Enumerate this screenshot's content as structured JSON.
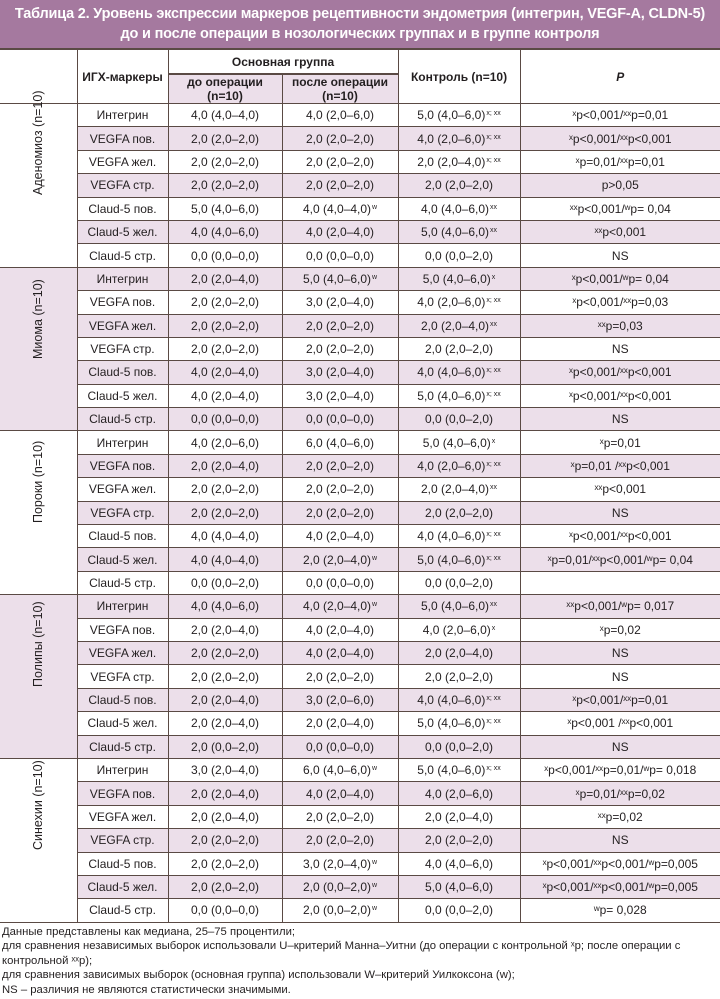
{
  "title": {
    "line1": "Таблица 2. Уровень экспрессии маркеров рецептивности эндометрия (интегрин, VEGF-A, CLDN-5)",
    "line2": "до и после операции в нозологических группах и в группе контроля"
  },
  "header": {
    "markers": "ИГХ-маркеры",
    "main_group": "Основная группа",
    "before": "до операции (n=10)",
    "after": "после операции (n=10)",
    "control": "Контроль (n=10)",
    "p": "P"
  },
  "colors": {
    "title_bg": "#a5799f",
    "row_shade": "#ecdfea",
    "border": "#5a4a44"
  },
  "groups": [
    {
      "label": "Аденомиоз (n=10)",
      "rows": [
        {
          "marker": "Интегрин",
          "before": "4,0 (4,0–4,0)",
          "after": "4,0 (2,0–6,0)",
          "after_sup": "",
          "control": "5,0 (4,0–6,0)",
          "control_sup": "x; xx",
          "p": "ˣp<0,001/ˣˣp=0,01"
        },
        {
          "marker": "VEGFA пов.",
          "before": "2,0 (2,0–2,0)",
          "after": "2,0 (2,0–2,0)",
          "after_sup": "",
          "control": "4,0 (2,0–6,0)",
          "control_sup": "x; xx",
          "p": "ˣp<0,001/ˣˣp<0,001"
        },
        {
          "marker": "VEGFA жел.",
          "before": "2,0 (2,0–2,0)",
          "after": "2,0 (2,0–2,0)",
          "after_sup": "",
          "control": "2,0 (2,0–4,0)",
          "control_sup": "x; xx",
          "p": "ˣp=0,01/ˣˣp=0,01"
        },
        {
          "marker": "VEGFA стр.",
          "before": "2,0 (2,0–2,0)",
          "after": "2,0 (2,0–2,0)",
          "after_sup": "",
          "control": "2,0 (2,0–2,0)",
          "control_sup": "",
          "p": "p>0,05"
        },
        {
          "marker": "Claud-5 пов.",
          "before": "5,0 (4,0–6,0)",
          "after": "4,0 (4,0–4,0)",
          "after_sup": "w",
          "control": "4,0 (4,0–6,0)",
          "control_sup": "xx",
          "p": "ˣˣp<0,001/ʷp= 0,04"
        },
        {
          "marker": "Claud-5 жел.",
          "before": "4,0 (4,0–6,0)",
          "after": "4,0 (2,0–4,0)",
          "after_sup": "",
          "control": "5,0 (4,0–6,0)",
          "control_sup": "xx",
          "p": "ˣˣp<0,001"
        },
        {
          "marker": "Claud-5 стр.",
          "before": "0,0 (0,0–0,0)",
          "after": "0,0 (0,0–0,0)",
          "after_sup": "",
          "control": "0,0 (0,0–2,0)",
          "control_sup": "",
          "p": "NS"
        }
      ]
    },
    {
      "label": "Миома (n=10)",
      "rows": [
        {
          "marker": "Интегрин",
          "before": "2,0 (2,0–4,0)",
          "after": "5,0 (4,0–6,0)",
          "after_sup": "w",
          "control": "5,0 (4,0–6,0)",
          "control_sup": "x",
          "p": "ˣp<0,001/ʷp= 0,04"
        },
        {
          "marker": "VEGFA пов.",
          "before": "2,0 (2,0–2,0)",
          "after": "3,0 (2,0–4,0)",
          "after_sup": "",
          "control": "4,0 (2,0–6,0)",
          "control_sup": "x; xx",
          "p": "ˣp<0,001/ˣˣp=0,03"
        },
        {
          "marker": "VEGFA жел.",
          "before": "2,0 (2,0–2,0)",
          "after": "2,0 (2,0–2,0)",
          "after_sup": "",
          "control": "2,0 (2,0–4,0)",
          "control_sup": "xx",
          "p": "ˣˣp=0,03"
        },
        {
          "marker": "VEGFA стр.",
          "before": "2,0 (2,0–2,0)",
          "after": "2,0 (2,0–2,0)",
          "after_sup": "",
          "control": "2,0 (2,0–2,0)",
          "control_sup": "",
          "p": "NS"
        },
        {
          "marker": "Claud-5 пов.",
          "before": "4,0 (2,0–4,0)",
          "after": "3,0 (2,0–4,0)",
          "after_sup": "",
          "control": "4,0 (4,0–6,0)",
          "control_sup": "x; xx",
          "p": "ˣp<0,001/ˣˣp<0,001"
        },
        {
          "marker": "Claud-5 жел.",
          "before": "4,0 (2,0–4,0)",
          "after": "3,0 (2,0–4,0)",
          "after_sup": "",
          "control": "5,0 (4,0–6,0)",
          "control_sup": "x; xx",
          "p": "ˣp<0,001/ˣˣp<0,001"
        },
        {
          "marker": "Claud-5 стр.",
          "before": "0,0 (0,0–0,0)",
          "after": "0,0 (0,0–0,0)",
          "after_sup": "",
          "control": "0,0 (0,0–2,0)",
          "control_sup": "",
          "p": "NS"
        }
      ]
    },
    {
      "label": "Пороки (n=10)",
      "rows": [
        {
          "marker": "Интегрин",
          "before": "4,0 (2,0–6,0)",
          "after": "6,0 (4,0–6,0)",
          "after_sup": "",
          "control": "5,0 (4,0–6,0)",
          "control_sup": "x",
          "p": "ˣp=0,01"
        },
        {
          "marker": "VEGFA пов.",
          "before": "2,0 (2,0–4,0)",
          "after": "2,0 (2,0–2,0)",
          "after_sup": "",
          "control": "4,0 (2,0–6,0)",
          "control_sup": "x; xx",
          "p": "ˣp=0,01 /ˣˣp<0,001"
        },
        {
          "marker": "VEGFA жел.",
          "before": "2,0 (2,0–2,0)",
          "after": "2,0 (2,0–2,0)",
          "after_sup": "",
          "control": "2,0 (2,0–4,0)",
          "control_sup": "xx",
          "p": "ˣˣp<0,001"
        },
        {
          "marker": "VEGFA стр.",
          "before": "2,0 (2,0–2,0)",
          "after": "2,0 (2,0–2,0)",
          "after_sup": "",
          "control": "2,0 (2,0–2,0)",
          "control_sup": "",
          "p": "NS"
        },
        {
          "marker": "Claud-5 пов.",
          "before": "4,0 (4,0–4,0)",
          "after": "4,0 (2,0–4,0)",
          "after_sup": "",
          "control": "4,0 (4,0–6,0)",
          "control_sup": "x; xx",
          "p": "ˣp<0,001/ˣˣp<0,001"
        },
        {
          "marker": "Claud-5 жел.",
          "before": "4,0 (4,0–4,0)",
          "after": "2,0 (2,0–4,0)",
          "after_sup": "w",
          "control": "5,0 (4,0–6,0)",
          "control_sup": "x; xx",
          "p": "ˣp=0,01/ˣˣp<0,001/ʷp= 0,04"
        },
        {
          "marker": "Claud-5 стр.",
          "before": "0,0 (0,0–2,0)",
          "after": "0,0 (0,0–0,0)",
          "after_sup": "",
          "control": "0,0 (0,0–2,0)",
          "control_sup": "",
          "p": ""
        }
      ]
    },
    {
      "label": "Полипы (n=10)",
      "rows": [
        {
          "marker": "Интегрин",
          "before": "4,0 (4,0–6,0)",
          "after": "4,0 (2,0–4,0)",
          "after_sup": "w",
          "control": "5,0 (4,0–6,0)",
          "control_sup": "xx",
          "p": "ˣˣp<0,001/ʷp= 0,017"
        },
        {
          "marker": "VEGFA пов.",
          "before": "2,0 (2,0–4,0)",
          "after": "4,0 (2,0–4,0)",
          "after_sup": "",
          "control": "4,0 (2,0–6,0)",
          "control_sup": "x",
          "p": "ˣp=0,02"
        },
        {
          "marker": "VEGFA жел.",
          "before": "2,0 (2,0–2,0)",
          "after": "4,0 (2,0–4,0)",
          "after_sup": "",
          "control": "2,0 (2,0–4,0)",
          "control_sup": "",
          "p": "NS"
        },
        {
          "marker": "VEGFA стр.",
          "before": "2,0 (2,0–2,0)",
          "after": "2,0 (2,0–2,0)",
          "after_sup": "",
          "control": "2,0 (2,0–2,0)",
          "control_sup": "",
          "p": "NS"
        },
        {
          "marker": "Claud-5 пов.",
          "before": "2,0 (2,0–4,0)",
          "after": "3,0 (2,0–6,0)",
          "after_sup": "",
          "control": "4,0 (4,0–6,0)",
          "control_sup": "x; xx",
          "p": "ˣp<0,001/ˣˣp=0,01"
        },
        {
          "marker": "Claud-5 жел.",
          "before": "2,0 (2,0–4,0)",
          "after": "2,0 (2,0–4,0)",
          "after_sup": "",
          "control": "5,0 (4,0–6,0)",
          "control_sup": "x; xx",
          "p": "ˣp<0,001 /ˣˣp<0,001"
        },
        {
          "marker": "Claud-5 стр.",
          "before": "2,0 (0,0–2,0)",
          "after": "0,0 (0,0–0,0)",
          "after_sup": "",
          "control": "0,0 (0,0–2,0)",
          "control_sup": "",
          "p": "NS"
        }
      ]
    },
    {
      "label": "Синехии (n=10)",
      "rows": [
        {
          "marker": "Интегрин",
          "before": "3,0 (2,0–4,0)",
          "after": "6,0 (4,0–6,0)",
          "after_sup": "w",
          "control": "5,0 (4,0–6,0)",
          "control_sup": "x; xx",
          "p": "ˣp<0,001/ˣˣp=0,01/ʷp= 0,018"
        },
        {
          "marker": "VEGFA пов.",
          "before": "2,0 (2,0–4,0)",
          "after": "4,0 (2,0–4,0)",
          "after_sup": "",
          "control": "4,0 (2,0–6,0)",
          "control_sup": "",
          "p": "ˣp=0,01/ˣˣp=0,02"
        },
        {
          "marker": "VEGFA жел.",
          "before": "2,0 (2,0–4,0)",
          "after": "2,0 (2,0–2,0)",
          "after_sup": "",
          "control": "2,0 (2,0–4,0)",
          "control_sup": "",
          "p": "ˣˣp=0,02"
        },
        {
          "marker": "VEGFA стр.",
          "before": "2,0 (2,0–2,0)",
          "after": "2,0 (2,0–2,0)",
          "after_sup": "",
          "control": "2,0 (2,0–2,0)",
          "control_sup": "",
          "p": "NS"
        },
        {
          "marker": "Claud-5 пов.",
          "before": "2,0 (2,0–2,0)",
          "after": "3,0 (2,0–4,0)",
          "after_sup": "w",
          "control": "4,0 (4,0–6,0)",
          "control_sup": "",
          "p": "ˣp<0,001/ˣˣp<0,001/ʷp=0,005"
        },
        {
          "marker": "Claud-5 жел.",
          "before": "2,0 (2,0–2,0)",
          "after": "2,0 (0,0–2,0)",
          "after_sup": "w",
          "control": "5,0 (4,0–6,0)",
          "control_sup": "",
          "p": "ˣp<0,001/ˣˣp<0,001/ʷp=0,005"
        },
        {
          "marker": "Claud-5 стр.",
          "before": "0,0 (0,0–0,0)",
          "after": "2,0 (0,0–2,0)",
          "after_sup": "w",
          "control": "0,0 (0,0–2,0)",
          "control_sup": "",
          "p": "ʷp= 0,028"
        }
      ]
    }
  ],
  "footnotes": [
    "Данные представлены как медиана, 25–75 процентили;",
    "для сравнения независимых выборок использовали U–критерий Манна–Уитни (до операции с контрольной ˣp; после операции с контрольной ˣˣp);",
    "для сравнения зависимых выборок (основная группа) использовали W–критерий Уилкоксона (w);",
    "NS – различия не являются статистически значимыми."
  ]
}
